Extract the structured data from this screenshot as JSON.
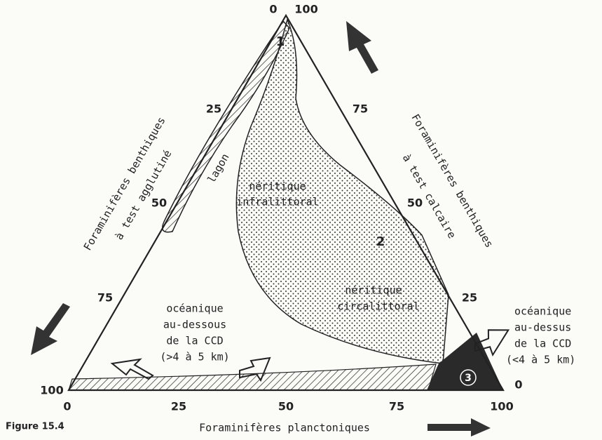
{
  "top_labels": [
    "0",
    "100"
  ],
  "left_ticks": [
    "25",
    "50",
    "75",
    "100"
  ],
  "right_ticks": [
    "75",
    "50",
    "25",
    "0"
  ],
  "bottom_ticks": [
    "0",
    "25",
    "50",
    "75",
    "100"
  ],
  "left_axis": [
    "Foraminifères benthiques",
    "à test agglutiné"
  ],
  "right_axis": [
    "Foraminifères benthiques",
    "à test calcaire"
  ],
  "bottom_axis": "Foraminifères planctoniques",
  "caption": "Figure 15.4",
  "regions": {
    "lagoon": {
      "number": "1",
      "label": "lagon"
    },
    "neritic": {
      "number": "2",
      "infralittoral": [
        "néritique",
        "infralittoral"
      ],
      "circalittoral": [
        "néritique",
        "circalittoral"
      ]
    },
    "below_ccd": [
      "océanique",
      "au-dessous",
      "de la CCD",
      "(>4 à 5 km)"
    ],
    "above_ccd": {
      "number": "3",
      "lines": [
        "océanique",
        "au-dessus",
        "de la CCD",
        "(<4 à 5 km)"
      ]
    }
  }
}
